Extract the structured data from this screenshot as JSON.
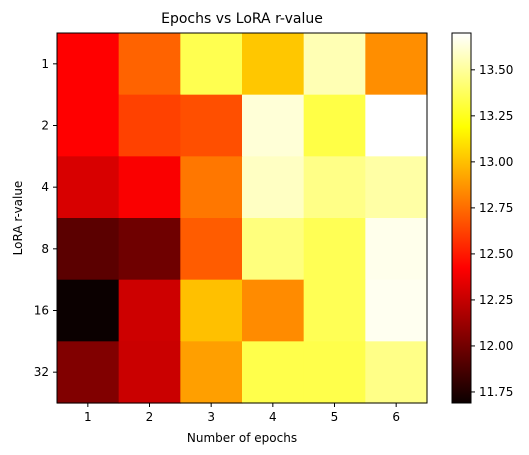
{
  "chart_data": {
    "type": "heatmap",
    "title": "Epochs vs LoRA r-value",
    "xlabel": "Number of epochs",
    "ylabel": "LoRA r-value",
    "x_categories": [
      "1",
      "2",
      "3",
      "4",
      "5",
      "6"
    ],
    "y_categories": [
      "1",
      "2",
      "4",
      "8",
      "16",
      "32"
    ],
    "values": [
      [
        12.42,
        12.72,
        13.35,
        13.02,
        13.55,
        12.85
      ],
      [
        12.42,
        12.62,
        12.66,
        13.62,
        13.33,
        13.7
      ],
      [
        12.28,
        12.38,
        12.78,
        13.58,
        13.46,
        13.52
      ],
      [
        11.92,
        11.98,
        12.7,
        13.44,
        13.36,
        13.66
      ],
      [
        11.69,
        12.25,
        13.0,
        12.84,
        13.36,
        13.67
      ],
      [
        12.03,
        12.24,
        12.9,
        13.34,
        13.34,
        13.46
      ]
    ],
    "colormap": "hot",
    "vmin": 11.69,
    "vmax": 13.7,
    "colorbar_ticks": [
      "11.75",
      "12.00",
      "12.25",
      "12.50",
      "12.75",
      "13.00",
      "13.25",
      "13.50"
    ],
    "grid": false
  }
}
